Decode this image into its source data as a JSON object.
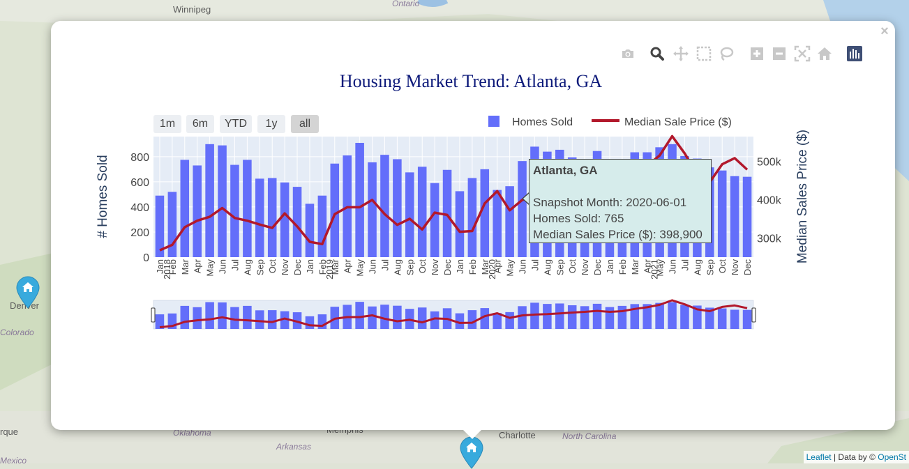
{
  "map": {
    "labels": [
      {
        "text": "Winnipeg",
        "kind": "city"
      },
      {
        "text": "Ontario",
        "kind": "state"
      },
      {
        "text": "Denver",
        "kind": "city"
      },
      {
        "text": "Colorado",
        "kind": "state"
      },
      {
        "text": "rque",
        "kind": "city"
      },
      {
        "text": "Mexico",
        "kind": "state"
      },
      {
        "text": "Oklahoma",
        "kind": "state"
      },
      {
        "text": "Arkansas",
        "kind": "state"
      },
      {
        "text": "Memphis",
        "kind": "city"
      },
      {
        "text": "Charlotte",
        "kind": "city"
      },
      {
        "text": "North Carolina",
        "kind": "state"
      }
    ],
    "attribution": {
      "leaflet": "Leaflet",
      "separator": " | Data by © ",
      "provider": "OpenSt"
    }
  },
  "popup": {
    "close_label": "×",
    "modebar": [
      {
        "name": "camera-icon",
        "title": "Download plot as a png"
      },
      {
        "name": "zoom-icon",
        "title": "Zoom"
      },
      {
        "name": "pan-icon",
        "title": "Pan"
      },
      {
        "name": "box-select-icon",
        "title": "Box Select"
      },
      {
        "name": "lasso-select-icon",
        "title": "Lasso Select"
      },
      {
        "name": "zoom-in-icon",
        "title": "Zoom in"
      },
      {
        "name": "zoom-out-icon",
        "title": "Zoom out"
      },
      {
        "name": "autoscale-icon",
        "title": "Autoscale"
      },
      {
        "name": "reset-axes-icon",
        "title": "Reset axes"
      },
      {
        "name": "plotly-logo-icon",
        "title": "Produced with Plotly"
      }
    ]
  },
  "chart_data": {
    "type": "bar",
    "title": "Housing Market Trend: Atlanta, GA",
    "range_selector": [
      {
        "label": "1m",
        "active": false
      },
      {
        "label": "6m",
        "active": false
      },
      {
        "label": "YTD",
        "active": false
      },
      {
        "label": "1y",
        "active": false
      },
      {
        "label": "all",
        "active": true
      }
    ],
    "legend": {
      "placement": "top-right",
      "entries": [
        "Homes Sold",
        "Median Sale Price ($)"
      ]
    },
    "ylabel": "# Homes Sold",
    "y2label": "Median Sales Price ($)",
    "ylim": [
      0,
      960
    ],
    "y2lim": [
      250000,
      564000
    ],
    "yticks": [
      {
        "value": 0,
        "label": "0"
      },
      {
        "value": 200,
        "label": "200"
      },
      {
        "value": 400,
        "label": "400"
      },
      {
        "value": 600,
        "label": "600"
      },
      {
        "value": 800,
        "label": "800"
      }
    ],
    "y2ticks": [
      {
        "value": 300000,
        "label": "300k"
      },
      {
        "value": 400000,
        "label": "400k"
      },
      {
        "value": 500000,
        "label": "500k"
      }
    ],
    "grid": true,
    "categories": [
      "Jan",
      "Feb",
      "Mar",
      "Apr",
      "May",
      "Jun",
      "Jul",
      "Aug",
      "Sep",
      "Oct",
      "Nov",
      "Dec",
      "Jan",
      "Feb",
      "Mar",
      "Apr",
      "May",
      "Jun",
      "Jul",
      "Aug",
      "Sep",
      "Oct",
      "Nov",
      "Dec",
      "Jan",
      "Feb",
      "Mar",
      "Apr",
      "May",
      "Jun",
      "Jul",
      "Aug",
      "Sep",
      "Oct",
      "Nov",
      "Dec",
      "Jan",
      "Feb",
      "Mar",
      "Apr",
      "May",
      "Jun",
      "Jul",
      "Aug",
      "Sep",
      "Oct",
      "Nov",
      "Dec"
    ],
    "year_labels": [
      {
        "index": 0,
        "label": "2018"
      },
      {
        "index": 13,
        "label": "2019"
      },
      {
        "index": 26,
        "label": "2020"
      },
      {
        "index": 39,
        "label": "2021"
      }
    ],
    "series": [
      {
        "name": "Homes Sold",
        "type": "bar",
        "color": "#636efa",
        "axis": "y",
        "values": [
          490,
          520,
          775,
          730,
          900,
          890,
          735,
          775,
          625,
          630,
          595,
          560,
          425,
          490,
          745,
          810,
          910,
          755,
          815,
          780,
          675,
          720,
          590,
          695,
          525,
          630,
          700,
          535,
          565,
          765,
          880,
          840,
          855,
          795,
          765,
          845,
          735,
          775,
          835,
          835,
          875,
          900,
          805,
          785,
          715,
          690,
          645,
          640
        ]
      },
      {
        "name": "Median Sale Price ($)",
        "type": "line",
        "color": "#b2182b",
        "axis": "y2",
        "values": [
          268000,
          282000,
          328000,
          345000,
          355000,
          378000,
          352000,
          345000,
          335000,
          326000,
          364000,
          330000,
          290000,
          284000,
          362000,
          380000,
          380000,
          399000,
          362000,
          334000,
          350000,
          322000,
          366000,
          360000,
          316000,
          318000,
          390000,
          422000,
          372000,
          398900,
          408000,
          412000,
          420000,
          430000,
          438000,
          448000,
          438000,
          445000,
          470000,
          488000,
          515000,
          565000,
          520000,
          465000,
          445000,
          492000,
          508000,
          478000
        ]
      }
    ],
    "tooltip": {
      "title": "Atlanta, GA",
      "lines": [
        "Snapshot Month: 2020-06-01",
        "Homes Sold: 765",
        "Median Sales Price ($): 398,900"
      ]
    }
  }
}
